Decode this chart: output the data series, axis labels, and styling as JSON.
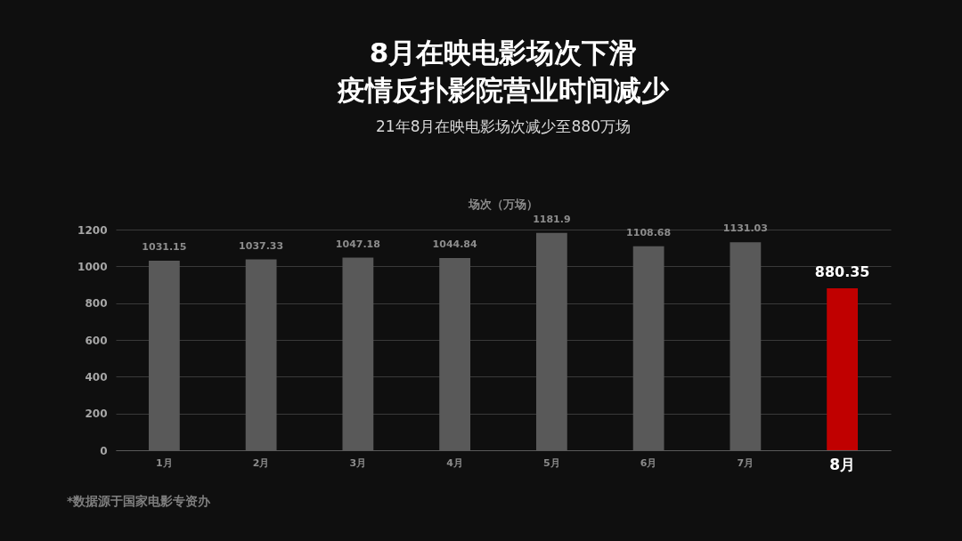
{
  "chart_data": {
    "type": "bar",
    "title": [
      "8月在映电影场次下滑",
      "疫情反扑影院营业时间减少"
    ],
    "subtitle": "21年8月在映电影场次减少至880万场",
    "ylabel": "场次（万场）",
    "categories": [
      "1月",
      "2月",
      "3月",
      "4月",
      "5月",
      "6月",
      "7月",
      "8月"
    ],
    "values": [
      1031.15,
      1037.33,
      1047.18,
      1044.84,
      1181.9,
      1108.68,
      1131.03,
      880.35
    ],
    "colors": [
      "#595959",
      "#595959",
      "#595959",
      "#595959",
      "#595959",
      "#595959",
      "#595959",
      "#c00000"
    ],
    "ylim": [
      0,
      1200
    ],
    "yticks": [
      0,
      200,
      400,
      600,
      800,
      1000,
      1200
    ],
    "grid": "y",
    "data_labels": true,
    "legend": false,
    "annotations": [
      "*数据源于国家电影专资办"
    ]
  }
}
